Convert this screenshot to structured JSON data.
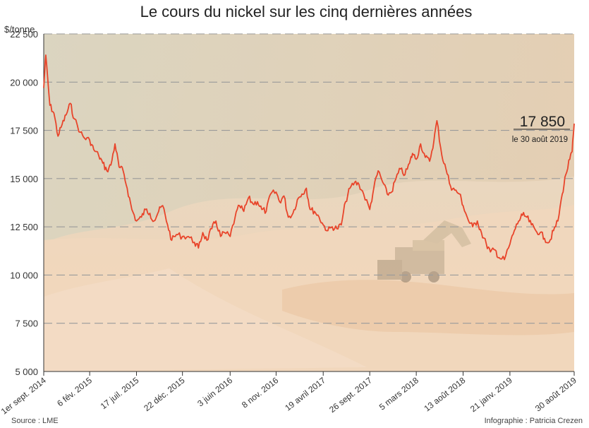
{
  "chart_data": {
    "type": "line",
    "title": "Le cours du nickel sur les cinq dernières années",
    "ylabel": "$/tonne",
    "ylim": [
      5000,
      22500
    ],
    "yticks": [
      5000,
      7500,
      10000,
      12500,
      15000,
      17500,
      20000,
      22500
    ],
    "ytick_labels": [
      "5 000",
      "7 500",
      "10 000",
      "12 500",
      "15 000",
      "17 500",
      "20 000",
      "22 500"
    ],
    "xlim": [
      "2014-09-01",
      "2019-08-30"
    ],
    "xticks": [
      "2014-09-01",
      "2015-02-06",
      "2015-07-17",
      "2015-12-22",
      "2016-06-03",
      "2016-11-08",
      "2017-04-19",
      "2017-09-26",
      "2018-03-05",
      "2018-08-13",
      "2019-01-21",
      "2019-08-30"
    ],
    "xtick_labels": [
      "1er sept. 2014",
      "6 fév. 2015",
      "17 juil. 2015",
      "22 déc. 2015",
      "3 juin 2016",
      "8 nov. 2016",
      "19 avril 2017",
      "26 sept. 2017",
      "5 mars 2018",
      "13 août 2018",
      "21 janv. 2019",
      "30 août 2019"
    ],
    "grid": true,
    "series": [
      {
        "color": "#e8442a",
        "points": [
          [
            "2014-09-01",
            19700
          ],
          [
            "2014-09-08",
            21400
          ],
          [
            "2014-09-22",
            18800
          ],
          [
            "2014-10-06",
            18400
          ],
          [
            "2014-10-20",
            17200
          ],
          [
            "2014-11-03",
            17800
          ],
          [
            "2014-11-17",
            18300
          ],
          [
            "2014-12-01",
            18900
          ],
          [
            "2014-12-15",
            18100
          ],
          [
            "2015-01-05",
            17400
          ],
          [
            "2015-01-19",
            17100
          ],
          [
            "2015-02-06",
            17000
          ],
          [
            "2015-02-20",
            16500
          ],
          [
            "2015-03-09",
            16200
          ],
          [
            "2015-03-23",
            15800
          ],
          [
            "2015-04-06",
            15400
          ],
          [
            "2015-04-20",
            15700
          ],
          [
            "2015-05-04",
            16800
          ],
          [
            "2015-05-18",
            15600
          ],
          [
            "2015-06-01",
            15400
          ],
          [
            "2015-06-15",
            14500
          ],
          [
            "2015-07-01",
            13400
          ],
          [
            "2015-07-17",
            12800
          ],
          [
            "2015-08-03",
            13000
          ],
          [
            "2015-08-17",
            13400
          ],
          [
            "2015-09-01",
            13200
          ],
          [
            "2015-09-15",
            12800
          ],
          [
            "2015-10-01",
            13300
          ],
          [
            "2015-10-15",
            13600
          ],
          [
            "2015-11-01",
            12600
          ],
          [
            "2015-11-15",
            11800
          ],
          [
            "2015-12-01",
            12100
          ],
          [
            "2015-12-22",
            12000
          ],
          [
            "2016-01-11",
            12000
          ],
          [
            "2016-02-01",
            11700
          ],
          [
            "2016-02-15",
            11400
          ],
          [
            "2016-03-01",
            12200
          ],
          [
            "2016-03-15",
            11800
          ],
          [
            "2016-04-01",
            12400
          ],
          [
            "2016-04-15",
            12800
          ],
          [
            "2016-05-01",
            12000
          ],
          [
            "2016-05-15",
            12200
          ],
          [
            "2016-06-03",
            12000
          ],
          [
            "2016-06-20",
            13000
          ],
          [
            "2016-07-05",
            13600
          ],
          [
            "2016-07-20",
            13300
          ],
          [
            "2016-08-05",
            14000
          ],
          [
            "2016-08-20",
            13700
          ],
          [
            "2016-09-05",
            13800
          ],
          [
            "2016-09-20",
            13400
          ],
          [
            "2016-10-05",
            13300
          ],
          [
            "2016-10-20",
            14200
          ],
          [
            "2016-11-08",
            14300
          ],
          [
            "2016-11-20",
            13800
          ],
          [
            "2016-12-05",
            14100
          ],
          [
            "2016-12-20",
            13000
          ],
          [
            "2017-01-05",
            13200
          ],
          [
            "2017-01-20",
            13900
          ],
          [
            "2017-02-05",
            14200
          ],
          [
            "2017-02-20",
            14500
          ],
          [
            "2017-03-05",
            13400
          ],
          [
            "2017-03-20",
            13300
          ],
          [
            "2017-04-05",
            13000
          ],
          [
            "2017-04-19",
            12600
          ],
          [
            "2017-05-05",
            12300
          ],
          [
            "2017-05-20",
            12500
          ],
          [
            "2017-06-05",
            12400
          ],
          [
            "2017-06-20",
            12600
          ],
          [
            "2017-07-05",
            13800
          ],
          [
            "2017-07-20",
            14500
          ],
          [
            "2017-08-05",
            14800
          ],
          [
            "2017-08-20",
            14700
          ],
          [
            "2017-09-05",
            14200
          ],
          [
            "2017-09-26",
            13400
          ],
          [
            "2017-10-10",
            14500
          ],
          [
            "2017-10-25",
            15400
          ],
          [
            "2017-11-10",
            14800
          ],
          [
            "2017-11-25",
            14200
          ],
          [
            "2017-12-10",
            14300
          ],
          [
            "2017-12-25",
            15000
          ],
          [
            "2018-01-10",
            15500
          ],
          [
            "2018-01-25",
            15200
          ],
          [
            "2018-02-10",
            15800
          ],
          [
            "2018-02-20",
            16300
          ],
          [
            "2018-03-05",
            16000
          ],
          [
            "2018-03-20",
            16800
          ],
          [
            "2018-04-05",
            16100
          ],
          [
            "2018-04-20",
            15900
          ],
          [
            "2018-05-05",
            17000
          ],
          [
            "2018-05-15",
            18000
          ],
          [
            "2018-06-01",
            16200
          ],
          [
            "2018-06-15",
            15500
          ],
          [
            "2018-07-01",
            14600
          ],
          [
            "2018-07-15",
            14400
          ],
          [
            "2018-08-01",
            14200
          ],
          [
            "2018-08-13",
            13600
          ],
          [
            "2018-09-01",
            12800
          ],
          [
            "2018-09-15",
            12500
          ],
          [
            "2018-10-01",
            12800
          ],
          [
            "2018-10-15",
            12200
          ],
          [
            "2018-11-01",
            11600
          ],
          [
            "2018-11-15",
            11200
          ],
          [
            "2018-12-01",
            11300
          ],
          [
            "2018-12-15",
            10900
          ],
          [
            "2019-01-02",
            10800
          ],
          [
            "2019-01-21",
            11600
          ],
          [
            "2019-02-05",
            12300
          ],
          [
            "2019-02-20",
            12800
          ],
          [
            "2019-03-05",
            13100
          ],
          [
            "2019-03-20",
            13000
          ],
          [
            "2019-04-05",
            12600
          ],
          [
            "2019-04-20",
            12300
          ],
          [
            "2019-05-05",
            12200
          ],
          [
            "2019-05-20",
            11900
          ],
          [
            "2019-06-05",
            11700
          ],
          [
            "2019-06-20",
            12300
          ],
          [
            "2019-07-05",
            12800
          ],
          [
            "2019-07-20",
            14200
          ],
          [
            "2019-08-01",
            15200
          ],
          [
            "2019-08-15",
            16000
          ],
          [
            "2019-08-23",
            16400
          ],
          [
            "2019-08-30",
            17850
          ]
        ]
      }
    ],
    "annotation": {
      "value": "17 850",
      "label": "le 30 août 2019"
    }
  },
  "footer": {
    "source": "Source : LME",
    "credit": "Infographie : Patricia Crezen"
  }
}
